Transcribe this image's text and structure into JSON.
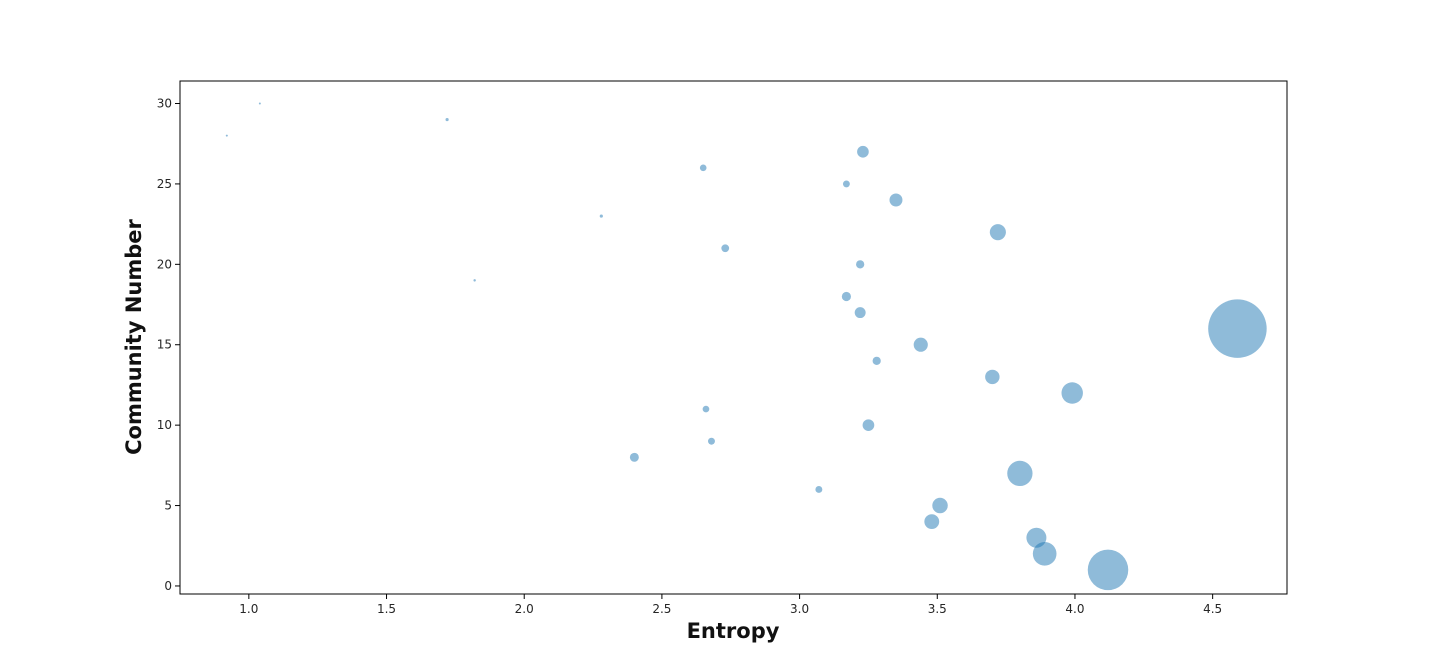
{
  "chart_data": {
    "type": "scatter",
    "title": "",
    "xlabel": "Entropy",
    "ylabel": "Community Number",
    "xlim": [
      0.75,
      4.77
    ],
    "ylim": [
      -0.5,
      31.4
    ],
    "xticks": [
      "1.0",
      "1.5",
      "2.0",
      "2.5",
      "3.0",
      "3.5",
      "4.0",
      "4.5"
    ],
    "yticks": [
      "0",
      "5",
      "10",
      "15",
      "20",
      "25",
      "30"
    ],
    "grid": false,
    "legend": "none",
    "marker_color": "#1f77b4",
    "marker_alpha": 0.5,
    "points": [
      {
        "community": 1,
        "entropy": 4.12,
        "size": 410
      },
      {
        "community": 2,
        "entropy": 3.89,
        "size": 140
      },
      {
        "community": 3,
        "entropy": 3.86,
        "size": 100
      },
      {
        "community": 4,
        "entropy": 3.48,
        "size": 55
      },
      {
        "community": 5,
        "entropy": 3.51,
        "size": 60
      },
      {
        "community": 6,
        "entropy": 3.07,
        "size": 12
      },
      {
        "community": 7,
        "entropy": 3.8,
        "size": 160
      },
      {
        "community": 8,
        "entropy": 2.4,
        "size": 20
      },
      {
        "community": 9,
        "entropy": 2.68,
        "size": 12
      },
      {
        "community": 10,
        "entropy": 3.25,
        "size": 34
      },
      {
        "community": 11,
        "entropy": 2.66,
        "size": 11
      },
      {
        "community": 12,
        "entropy": 3.99,
        "size": 115
      },
      {
        "community": 13,
        "entropy": 3.7,
        "size": 52
      },
      {
        "community": 14,
        "entropy": 3.28,
        "size": 17
      },
      {
        "community": 15,
        "entropy": 3.44,
        "size": 50
      },
      {
        "community": 16,
        "entropy": 4.59,
        "size": 855
      },
      {
        "community": 17,
        "entropy": 3.22,
        "size": 30
      },
      {
        "community": 18,
        "entropy": 3.17,
        "size": 21
      },
      {
        "community": 19,
        "entropy": 1.82,
        "size": 1.5
      },
      {
        "community": 20,
        "entropy": 3.22,
        "size": 17
      },
      {
        "community": 21,
        "entropy": 2.73,
        "size": 15
      },
      {
        "community": 22,
        "entropy": 3.72,
        "size": 65
      },
      {
        "community": 23,
        "entropy": 2.28,
        "size": 2.5
      },
      {
        "community": 24,
        "entropy": 3.35,
        "size": 42
      },
      {
        "community": 25,
        "entropy": 3.17,
        "size": 12
      },
      {
        "community": 26,
        "entropy": 2.65,
        "size": 11
      },
      {
        "community": 27,
        "entropy": 3.23,
        "size": 34
      },
      {
        "community": 28,
        "entropy": 0.92,
        "size": 1
      },
      {
        "community": 29,
        "entropy": 1.72,
        "size": 2.5
      },
      {
        "community": 30,
        "entropy": 1.04,
        "size": 1
      }
    ]
  }
}
